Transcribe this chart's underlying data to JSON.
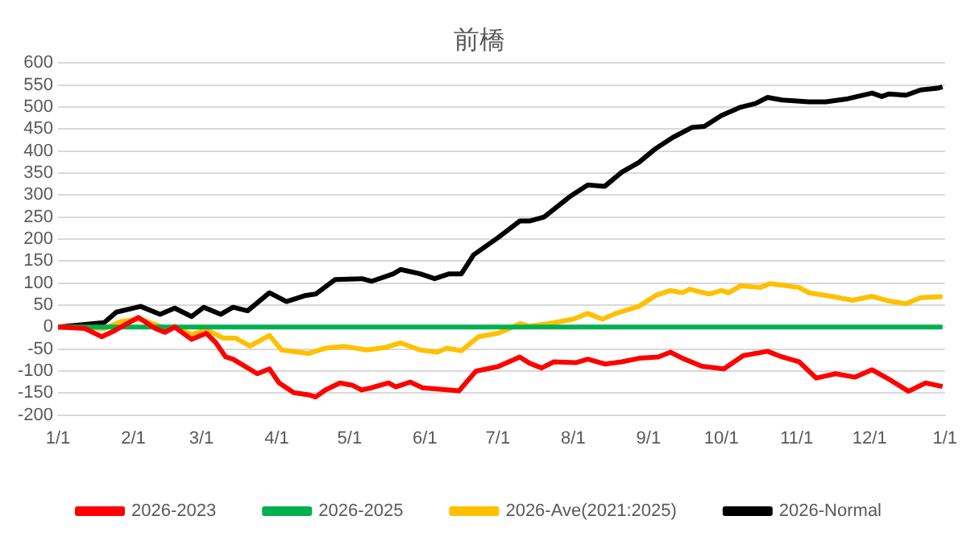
{
  "chart_data": {
    "type": "line",
    "title": "前橋",
    "xlim": [
      "2026-01-01",
      "2027-01-01"
    ],
    "xticks": [
      {
        "value": "2026-01-01",
        "label": "1/1"
      },
      {
        "value": "2026-02-01",
        "label": "2/1"
      },
      {
        "value": "2026-03-01",
        "label": "3/1"
      },
      {
        "value": "2026-04-01",
        "label": "4/1"
      },
      {
        "value": "2026-05-01",
        "label": "5/1"
      },
      {
        "value": "2026-06-01",
        "label": "6/1"
      },
      {
        "value": "2026-07-01",
        "label": "7/1"
      },
      {
        "value": "2026-08-01",
        "label": "8/1"
      },
      {
        "value": "2026-09-01",
        "label": "9/1"
      },
      {
        "value": "2026-10-01",
        "label": "10/1"
      },
      {
        "value": "2026-11-01",
        "label": "11/1"
      },
      {
        "value": "2026-12-01",
        "label": "12/1"
      },
      {
        "value": "2027-01-01",
        "label": "1/1"
      }
    ],
    "ylim": [
      -200,
      600
    ],
    "yticks": [
      -200,
      -150,
      -100,
      -50,
      0,
      50,
      100,
      150,
      200,
      250,
      300,
      350,
      400,
      450,
      500,
      550,
      600
    ],
    "grid": "y",
    "legend": "bottom",
    "marker": "none",
    "line_style": "solid",
    "series": [
      {
        "name": "2026-2023",
        "color": "#ff0000",
        "x": [
          "2026-01-01",
          "2026-01-12",
          "2026-01-19",
          "2026-01-24",
          "2026-02-03",
          "2026-02-10",
          "2026-02-14",
          "2026-02-18",
          "2026-02-25",
          "2026-03-03",
          "2026-03-07",
          "2026-03-11",
          "2026-03-14",
          "2026-03-24",
          "2026-03-29",
          "2026-04-02",
          "2026-04-08",
          "2026-04-14",
          "2026-04-17",
          "2026-04-21",
          "2026-04-27",
          "2026-05-02",
          "2026-05-06",
          "2026-05-10",
          "2026-05-17",
          "2026-05-20",
          "2026-05-26",
          "2026-05-31",
          "2026-06-15",
          "2026-06-22",
          "2026-07-01",
          "2026-07-10",
          "2026-07-14",
          "2026-07-19",
          "2026-07-24",
          "2026-08-02",
          "2026-08-07",
          "2026-08-14",
          "2026-08-21",
          "2026-08-28",
          "2026-09-05",
          "2026-09-10",
          "2026-09-15",
          "2026-09-23",
          "2026-10-02",
          "2026-10-10",
          "2026-10-20",
          "2026-10-26",
          "2026-11-02",
          "2026-11-09",
          "2026-11-17",
          "2026-11-25",
          "2026-12-02",
          "2026-12-10",
          "2026-12-17",
          "2026-12-24",
          "2026-12-31"
        ],
        "values": [
          0,
          -3,
          -22,
          -9,
          22,
          -3,
          -12,
          0,
          -28,
          -14,
          -36,
          -68,
          -73,
          -106,
          -95,
          -127,
          -149,
          -154,
          -159,
          -143,
          -127,
          -132,
          -143,
          -138,
          -127,
          -136,
          -125,
          -138,
          -145,
          -100,
          -90,
          -68,
          -82,
          -93,
          -79,
          -81,
          -73,
          -84,
          -79,
          -71,
          -68,
          -57,
          -71,
          -89,
          -95,
          -65,
          -55,
          -68,
          -79,
          -116,
          -106,
          -114,
          -97,
          -122,
          -146,
          -127,
          -135
        ]
      },
      {
        "name": "2026-2025",
        "color": "#00b050",
        "x": [
          "2026-01-01",
          "2026-12-31"
        ],
        "values": [
          0,
          0
        ]
      },
      {
        "name": "2026-Ave(2021:2025)",
        "color": "#ffc000",
        "x": [
          "2026-01-01",
          "2026-01-20",
          "2026-01-27",
          "2026-02-04",
          "2026-02-12",
          "2026-02-16",
          "2026-02-18",
          "2026-02-25",
          "2026-03-03",
          "2026-03-10",
          "2026-03-15",
          "2026-03-21",
          "2026-03-29",
          "2026-04-03",
          "2026-04-14",
          "2026-04-21",
          "2026-04-29",
          "2026-05-08",
          "2026-05-16",
          "2026-05-22",
          "2026-05-30",
          "2026-06-06",
          "2026-06-10",
          "2026-06-16",
          "2026-06-23",
          "2026-07-01",
          "2026-07-06",
          "2026-07-10",
          "2026-07-14",
          "2026-07-22",
          "2026-08-01",
          "2026-08-07",
          "2026-08-13",
          "2026-08-19",
          "2026-08-28",
          "2026-09-04",
          "2026-09-10",
          "2026-09-15",
          "2026-09-18",
          "2026-09-26",
          "2026-10-01",
          "2026-10-04",
          "2026-10-09",
          "2026-10-17",
          "2026-10-21",
          "2026-11-02",
          "2026-11-06",
          "2026-11-15",
          "2026-11-24",
          "2026-12-02",
          "2026-12-09",
          "2026-12-16",
          "2026-12-22",
          "2026-12-31"
        ],
        "values": [
          0,
          -3,
          13,
          18,
          2,
          -6,
          2,
          -17,
          -6,
          -25,
          -25,
          -43,
          -19,
          -52,
          -60,
          -48,
          -44,
          -52,
          -46,
          -36,
          -52,
          -57,
          -48,
          -54,
          -22,
          -14,
          -3,
          8,
          2,
          8,
          18,
          31,
          18,
          32,
          47,
          72,
          83,
          78,
          86,
          75,
          83,
          78,
          94,
          90,
          99,
          90,
          78,
          70,
          61,
          70,
          59,
          53,
          67,
          69
        ]
      },
      {
        "name": "2026-Normal",
        "color": "#000000",
        "x": [
          "2026-01-01",
          "2026-01-20",
          "2026-01-25",
          "2026-02-04",
          "2026-02-12",
          "2026-02-18",
          "2026-02-25",
          "2026-03-02",
          "2026-03-09",
          "2026-03-14",
          "2026-03-20",
          "2026-03-29",
          "2026-04-05",
          "2026-04-13",
          "2026-04-17",
          "2026-04-25",
          "2026-05-06",
          "2026-05-10",
          "2026-05-19",
          "2026-05-22",
          "2026-05-30",
          "2026-06-05",
          "2026-06-11",
          "2026-06-16",
          "2026-06-21",
          "2026-07-01",
          "2026-07-10",
          "2026-07-14",
          "2026-07-20",
          "2026-07-31",
          "2026-08-07",
          "2026-08-14",
          "2026-08-21",
          "2026-08-28",
          "2026-09-04",
          "2026-09-11",
          "2026-09-19",
          "2026-09-24",
          "2026-10-01",
          "2026-10-09",
          "2026-10-15",
          "2026-10-20",
          "2026-10-26",
          "2026-11-06",
          "2026-11-13",
          "2026-11-22",
          "2026-12-02",
          "2026-12-06",
          "2026-12-09",
          "2026-12-16",
          "2026-12-22",
          "2026-12-29",
          "2026-12-31"
        ],
        "values": [
          0,
          10,
          34,
          47,
          29,
          43,
          24,
          45,
          29,
          45,
          37,
          78,
          58,
          72,
          75,
          108,
          110,
          104,
          121,
          131,
          121,
          110,
          121,
          121,
          164,
          203,
          241,
          241,
          250,
          298,
          323,
          320,
          352,
          374,
          406,
          431,
          454,
          456,
          481,
          500,
          508,
          522,
          516,
          512,
          512,
          519,
          532,
          524,
          530,
          527,
          539,
          543,
          546
        ]
      }
    ]
  }
}
